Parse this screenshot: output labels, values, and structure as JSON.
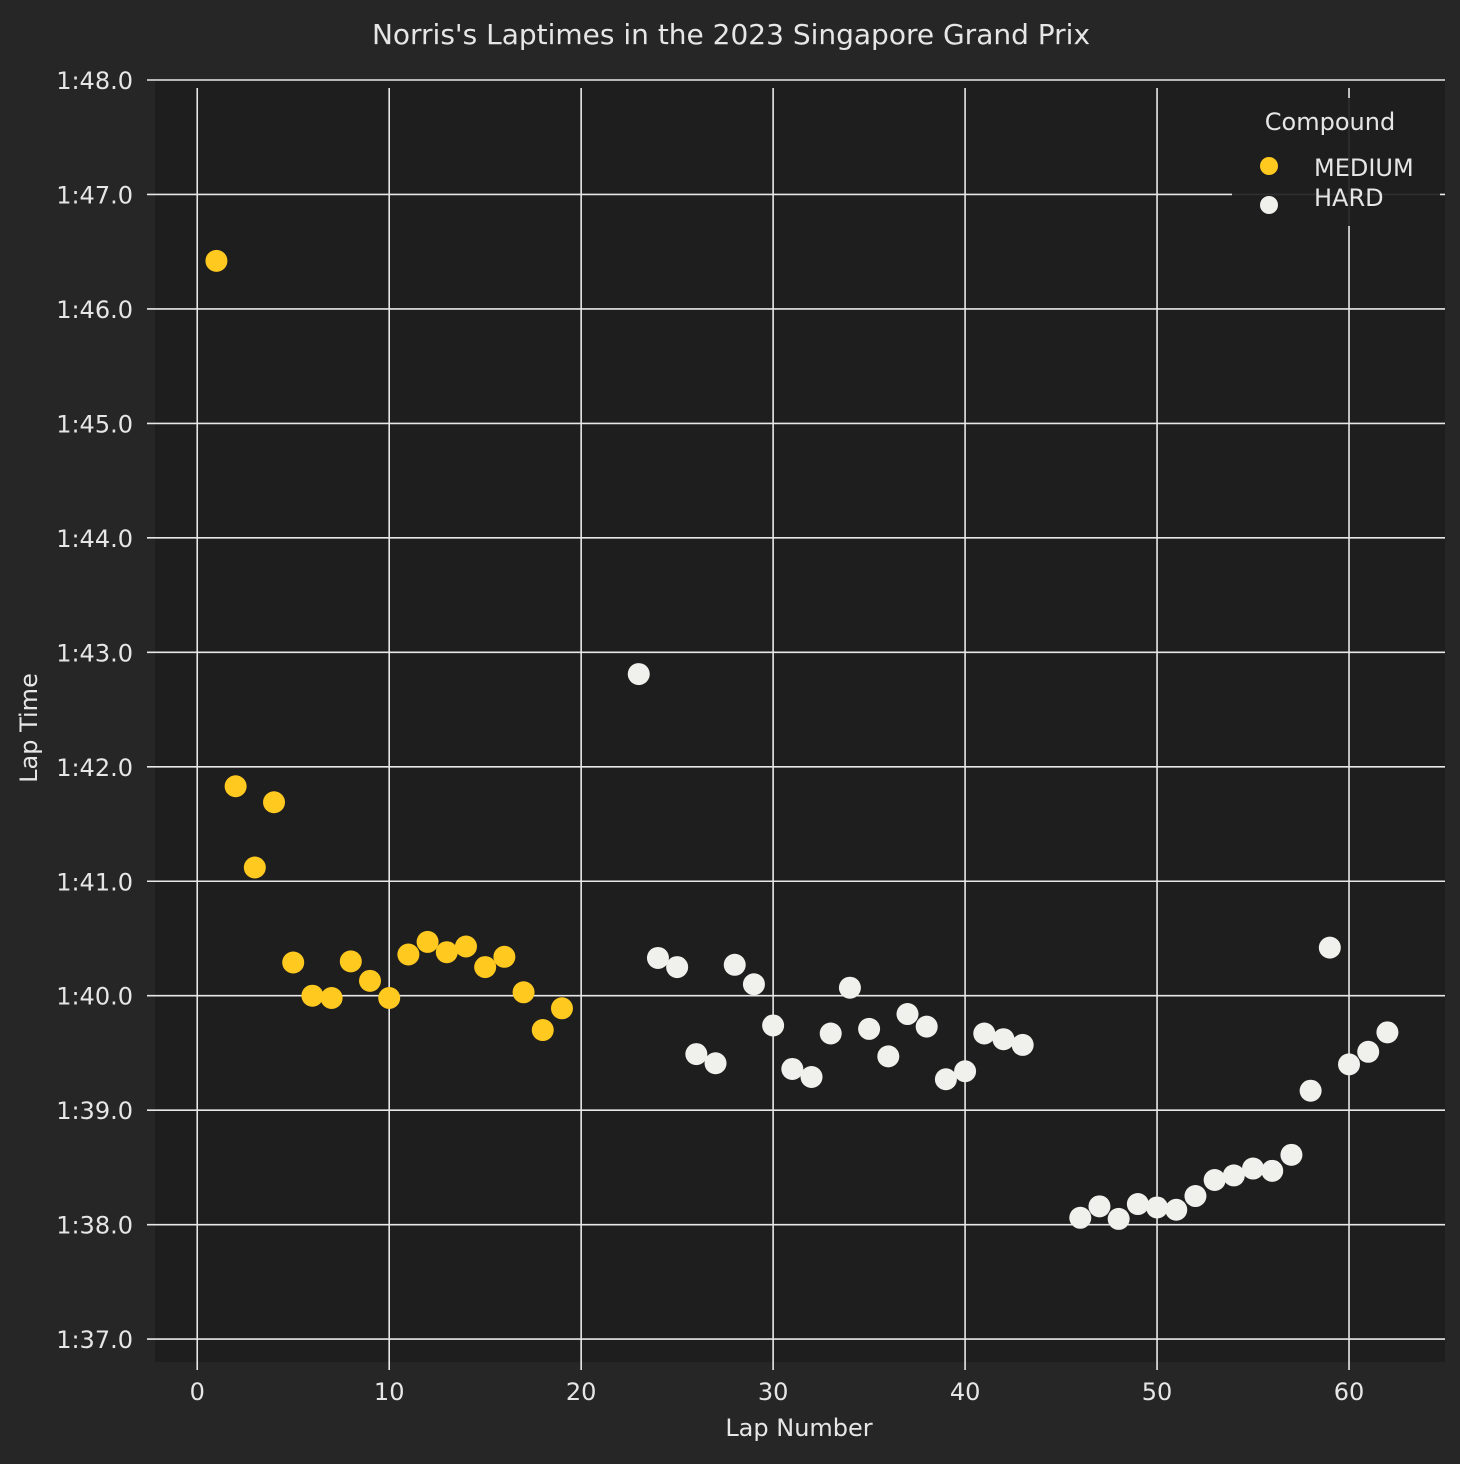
{
  "chart_data": {
    "type": "scatter",
    "title": "Norris's Laptimes in the 2023 Singapore Grand Prix",
    "xlabel": "Lap Number",
    "ylabel": "Lap Time",
    "xlim": [
      -2.2,
      65
    ],
    "ylim": [
      96.8,
      108.0
    ],
    "x_ticks": [
      0,
      10,
      20,
      30,
      40,
      50,
      60
    ],
    "x_tick_labels": [
      "0",
      "10",
      "20",
      "30",
      "40",
      "50",
      "60"
    ],
    "y_ticks": [
      97,
      98,
      99,
      100,
      101,
      102,
      103,
      104,
      105,
      106,
      107,
      108
    ],
    "y_tick_labels": [
      "1:37.0",
      "1:38.0",
      "1:39.0",
      "1:40.0",
      "1:41.0",
      "1:42.0",
      "1:43.0",
      "1:44.0",
      "1:45.0",
      "1:46.0",
      "1:47.0",
      "1:48.0"
    ],
    "grid": true,
    "legend": {
      "title": "Compound",
      "placement": "top-right"
    },
    "series": [
      {
        "name": "MEDIUM",
        "color": "#ffc91f",
        "points": [
          [
            1,
            106.42
          ],
          [
            2,
            101.83
          ],
          [
            3,
            101.12
          ],
          [
            4,
            101.69
          ],
          [
            5,
            100.29
          ],
          [
            6,
            100.0
          ],
          [
            7,
            99.98
          ],
          [
            8,
            100.3
          ],
          [
            9,
            100.13
          ],
          [
            10,
            99.98
          ],
          [
            11,
            100.36
          ],
          [
            12,
            100.47
          ],
          [
            13,
            100.38
          ],
          [
            14,
            100.43
          ],
          [
            15,
            100.25
          ],
          [
            16,
            100.34
          ],
          [
            17,
            100.03
          ],
          [
            18,
            99.7
          ],
          [
            19,
            99.89
          ]
        ]
      },
      {
        "name": "HARD",
        "color": "#f0f0ec",
        "points": [
          [
            23,
            102.81
          ],
          [
            24,
            100.33
          ],
          [
            25,
            100.25
          ],
          [
            26,
            99.49
          ],
          [
            27,
            99.41
          ],
          [
            28,
            100.27
          ],
          [
            29,
            100.1
          ],
          [
            30,
            99.74
          ],
          [
            31,
            99.36
          ],
          [
            32,
            99.29
          ],
          [
            33,
            99.67
          ],
          [
            34,
            100.07
          ],
          [
            35,
            99.71
          ],
          [
            36,
            99.47
          ],
          [
            37,
            99.84
          ],
          [
            38,
            99.73
          ],
          [
            39,
            99.27
          ],
          [
            40,
            99.34
          ],
          [
            41,
            99.67
          ],
          [
            42,
            99.62
          ],
          [
            43,
            99.57
          ],
          [
            46,
            98.06
          ],
          [
            47,
            98.16
          ],
          [
            48,
            98.05
          ],
          [
            49,
            98.18
          ],
          [
            50,
            98.15
          ],
          [
            51,
            98.13
          ],
          [
            52,
            98.25
          ],
          [
            53,
            98.39
          ],
          [
            54,
            98.43
          ],
          [
            55,
            98.49
          ],
          [
            56,
            98.47
          ],
          [
            57,
            98.61
          ],
          [
            58,
            99.17
          ],
          [
            59,
            100.42
          ],
          [
            60,
            99.4
          ],
          [
            61,
            99.51
          ],
          [
            62,
            99.68
          ]
        ]
      }
    ]
  }
}
